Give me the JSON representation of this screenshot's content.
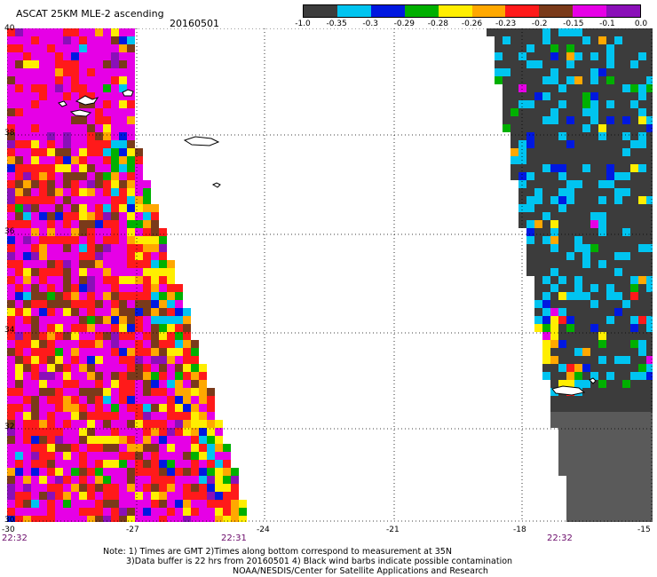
{
  "header": {
    "title": "ASCAT 25KM MLE-2 ascending",
    "date": "20160501"
  },
  "legend": {
    "colors": [
      "#3c3c3c",
      "#00c4f0",
      "#0018e0",
      "#00b000",
      "#ffee00",
      "#ffa800",
      "#ff1a1a",
      "#7a3a1a",
      "#e600e6",
      "#8a10b8"
    ],
    "labels": [
      "-1.0",
      "-0.35",
      "-0.3",
      "-0.29",
      "-0.28",
      "-0.26",
      "-0.23",
      "-0.2",
      "-0.15",
      "-0.1",
      "0.0"
    ]
  },
  "axes": {
    "lat_labels": [
      "40",
      "38",
      "36",
      "34",
      "32",
      "30"
    ],
    "lon_labels": [
      "-30",
      "-27",
      "-24",
      "-21",
      "-18",
      "-15"
    ]
  },
  "times": {
    "left_bottom": "22:32",
    "swath1_bottom": "22:31",
    "swath2_bottom": "22:32"
  },
  "notes": {
    "line1": "Note: 1) Times are GMT 2)Times along bottom correspond to measurement at 35N",
    "line2": "3)Data buffer is 22 hrs from 20160501 4) Black wind barbs indicate possible contamination",
    "line3": "NOAA/NESDIS/Center for Satellite Applications and Research"
  }
}
